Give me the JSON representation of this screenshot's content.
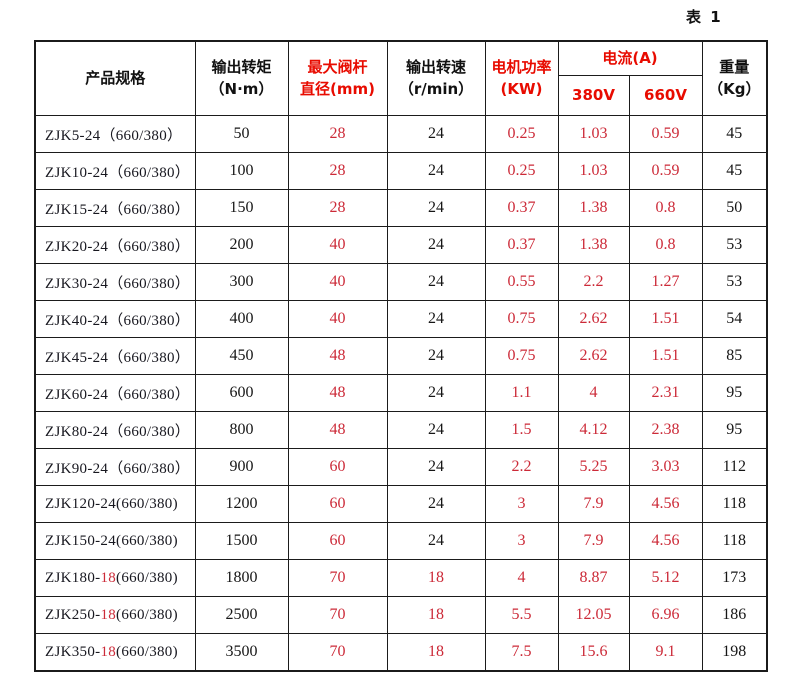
{
  "page": {
    "table_label": "表 1"
  },
  "colors": {
    "header_red": "#e80b00",
    "data_red": "#cc2a38",
    "text_black": "#151515",
    "border_black": "#1b1b1b"
  },
  "header": {
    "product": "产品规格",
    "torque_line1": "输出转矩",
    "torque_line2": "（N·m）",
    "stem_line1": "最大阀杆",
    "stem_line2": "直径(mm)",
    "speed_line1": "输出转速",
    "speed_line2": "（r/min）",
    "power_line1": "电机功率",
    "power_line2": "(KW)",
    "current": "电流(A)",
    "current_380": "380V",
    "current_660": "660V",
    "weight_line1": "重量",
    "weight_line2": "（Kg）"
  },
  "rows": [
    {
      "model_pre": "ZJK5-24",
      "model_red": "",
      "model_post": "（660/380）",
      "torque": "50",
      "stem": "28",
      "speed": "24",
      "speed_red": false,
      "power": "0.25",
      "a380": "1.03",
      "a660": "0.59",
      "weight": "45"
    },
    {
      "model_pre": "ZJK10-24",
      "model_red": "",
      "model_post": "（660/380）",
      "torque": "100",
      "stem": "28",
      "speed": "24",
      "speed_red": false,
      "power": "0.25",
      "a380": "1.03",
      "a660": "0.59",
      "weight": "45"
    },
    {
      "model_pre": "ZJK15-24",
      "model_red": "",
      "model_post": "（660/380）",
      "torque": "150",
      "stem": "28",
      "speed": "24",
      "speed_red": false,
      "power": "0.37",
      "a380": "1.38",
      "a660": "0.8",
      "weight": "50"
    },
    {
      "model_pre": "ZJK20-24",
      "model_red": "",
      "model_post": "（660/380）",
      "torque": "200",
      "stem": "40",
      "speed": "24",
      "speed_red": false,
      "power": "0.37",
      "a380": "1.38",
      "a660": "0.8",
      "weight": "53"
    },
    {
      "model_pre": "ZJK30-24",
      "model_red": "",
      "model_post": "（660/380）",
      "torque": "300",
      "stem": "40",
      "speed": "24",
      "speed_red": false,
      "power": "0.55",
      "a380": "2.2",
      "a660": "1.27",
      "weight": "53"
    },
    {
      "model_pre": "ZJK40-24",
      "model_red": "",
      "model_post": "（660/380）",
      "torque": "400",
      "stem": "40",
      "speed": "24",
      "speed_red": false,
      "power": "0.75",
      "a380": "2.62",
      "a660": "1.51",
      "weight": "54"
    },
    {
      "model_pre": "ZJK45-24",
      "model_red": "",
      "model_post": "（660/380）",
      "torque": "450",
      "stem": "48",
      "speed": "24",
      "speed_red": false,
      "power": "0.75",
      "a380": "2.62",
      "a660": "1.51",
      "weight": "85"
    },
    {
      "model_pre": "ZJK60-24",
      "model_red": "",
      "model_post": "（660/380）",
      "torque": "600",
      "stem": "48",
      "speed": "24",
      "speed_red": false,
      "power": "1.1",
      "a380": "4",
      "a660": "2.31",
      "weight": "95"
    },
    {
      "model_pre": "ZJK80-24",
      "model_red": "",
      "model_post": "（660/380）",
      "torque": "800",
      "stem": "48",
      "speed": "24",
      "speed_red": false,
      "power": "1.5",
      "a380": "4.12",
      "a660": "2.38",
      "weight": "95"
    },
    {
      "model_pre": "ZJK90-24",
      "model_red": "",
      "model_post": "（660/380）",
      "torque": "900",
      "stem": "60",
      "speed": "24",
      "speed_red": false,
      "power": "2.2",
      "a380": "5.25",
      "a660": "3.03",
      "weight": "112"
    },
    {
      "model_pre": "ZJK120-24",
      "model_red": "",
      "model_post": "(660/380)",
      "torque": "1200",
      "stem": "60",
      "speed": "24",
      "speed_red": false,
      "power": "3",
      "a380": "7.9",
      "a660": "4.56",
      "weight": "118"
    },
    {
      "model_pre": "ZJK150-24",
      "model_red": "",
      "model_post": "(660/380)",
      "torque": "1500",
      "stem": "60",
      "speed": "24",
      "speed_red": false,
      "power": "3",
      "a380": "7.9",
      "a660": "4.56",
      "weight": "118"
    },
    {
      "model_pre": "ZJK180-",
      "model_red": "18",
      "model_post": "(660/380)",
      "torque": "1800",
      "stem": "70",
      "speed": "18",
      "speed_red": true,
      "power": "4",
      "a380": "8.87",
      "a660": "5.12",
      "weight": "173"
    },
    {
      "model_pre": "ZJK250-",
      "model_red": "18",
      "model_post": "(660/380)",
      "torque": "2500",
      "stem": "70",
      "speed": "18",
      "speed_red": true,
      "power": "5.5",
      "a380": "12.05",
      "a660": "6.96",
      "weight": "186"
    },
    {
      "model_pre": "ZJK350-",
      "model_red": "18",
      "model_post": "(660/380)",
      "torque": "3500",
      "stem": "70",
      "speed": "18",
      "speed_red": true,
      "power": "7.5",
      "a380": "15.6",
      "a660": "9.1",
      "weight": "198"
    }
  ]
}
